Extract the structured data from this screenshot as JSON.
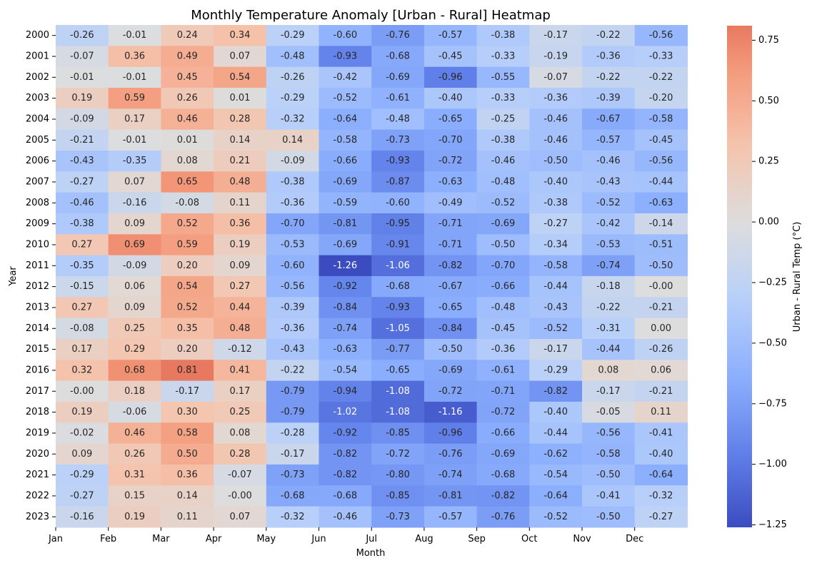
{
  "chart_data": {
    "type": "heatmap",
    "title": "Monthly Temperature Anomaly [Urban - Rural] Heatmap",
    "xlabel": "Month",
    "ylabel": "Year",
    "colorbar_label": "Urban - Rural Temp (°C)",
    "colormap": "coolwarm",
    "vmin": -1.26,
    "vmax": 0.81,
    "colorbar_ticks": [
      "0.75",
      "0.50",
      "0.25",
      "0.00",
      "−0.25",
      "−0.50",
      "−0.75",
      "−1.00",
      "−1.25"
    ],
    "colorbar_tick_values": [
      0.75,
      0.5,
      0.25,
      0.0,
      -0.25,
      -0.5,
      -0.75,
      -1.0,
      -1.25
    ],
    "x_tick_labels": [
      "Jan",
      "Feb",
      "Mar",
      "Apr",
      "May",
      "Jun",
      "Jul",
      "Aug",
      "Sep",
      "Oct",
      "Nov",
      "Dec"
    ],
    "y_tick_labels": [
      "2000",
      "2001",
      "2002",
      "2003",
      "2004",
      "2005",
      "2006",
      "2007",
      "2008",
      "2009",
      "2010",
      "2011",
      "2012",
      "2013",
      "2014",
      "2015",
      "2016",
      "2017",
      "2018",
      "2019",
      "2020",
      "2021",
      "2022",
      "2023"
    ],
    "cell_labels": [
      [
        "-0.26",
        "-0.01",
        "0.24",
        "0.34",
        "-0.29",
        "-0.60",
        "-0.76",
        "-0.57",
        "-0.38",
        "-0.17",
        "-0.22",
        "-0.56"
      ],
      [
        "-0.07",
        "0.36",
        "0.49",
        "0.07",
        "-0.48",
        "-0.93",
        "-0.68",
        "-0.45",
        "-0.33",
        "-0.19",
        "-0.36",
        "-0.33"
      ],
      [
        "-0.01",
        "-0.01",
        "0.45",
        "0.54",
        "-0.26",
        "-0.42",
        "-0.69",
        "-0.96",
        "-0.55",
        "-0.07",
        "-0.22",
        "-0.22"
      ],
      [
        "0.19",
        "0.59",
        "0.26",
        "0.01",
        "-0.29",
        "-0.52",
        "-0.61",
        "-0.40",
        "-0.33",
        "-0.36",
        "-0.39",
        "-0.20"
      ],
      [
        "-0.09",
        "0.17",
        "0.46",
        "0.28",
        "-0.32",
        "-0.64",
        "-0.48",
        "-0.65",
        "-0.25",
        "-0.46",
        "-0.67",
        "-0.58"
      ],
      [
        "-0.21",
        "-0.01",
        "0.01",
        "0.14",
        "0.14",
        "-0.58",
        "-0.73",
        "-0.70",
        "-0.38",
        "-0.46",
        "-0.57",
        "-0.45"
      ],
      [
        "-0.43",
        "-0.35",
        "0.08",
        "0.21",
        "-0.09",
        "-0.66",
        "-0.93",
        "-0.72",
        "-0.46",
        "-0.50",
        "-0.46",
        "-0.56"
      ],
      [
        "-0.27",
        "0.07",
        "0.65",
        "0.48",
        "-0.38",
        "-0.69",
        "-0.87",
        "-0.63",
        "-0.48",
        "-0.40",
        "-0.43",
        "-0.44"
      ],
      [
        "-0.46",
        "-0.16",
        "-0.08",
        "0.11",
        "-0.36",
        "-0.59",
        "-0.60",
        "-0.49",
        "-0.52",
        "-0.38",
        "-0.52",
        "-0.63"
      ],
      [
        "-0.38",
        "0.09",
        "0.52",
        "0.36",
        "-0.70",
        "-0.81",
        "-0.95",
        "-0.71",
        "-0.69",
        "-0.27",
        "-0.42",
        "-0.14"
      ],
      [
        "0.27",
        "0.69",
        "0.59",
        "0.19",
        "-0.53",
        "-0.69",
        "-0.91",
        "-0.71",
        "-0.50",
        "-0.34",
        "-0.53",
        "-0.51"
      ],
      [
        "-0.35",
        "-0.09",
        "0.20",
        "0.09",
        "-0.60",
        "-1.26",
        "-1.06",
        "-0.82",
        "-0.70",
        "-0.58",
        "-0.74",
        "-0.50"
      ],
      [
        "-0.15",
        "0.06",
        "0.54",
        "0.27",
        "-0.56",
        "-0.92",
        "-0.68",
        "-0.67",
        "-0.66",
        "-0.44",
        "-0.18",
        "-0.00"
      ],
      [
        "0.27",
        "0.09",
        "0.52",
        "0.44",
        "-0.39",
        "-0.84",
        "-0.93",
        "-0.65",
        "-0.48",
        "-0.43",
        "-0.22",
        "-0.21"
      ],
      [
        "-0.08",
        "0.25",
        "0.35",
        "0.48",
        "-0.36",
        "-0.74",
        "-1.05",
        "-0.84",
        "-0.45",
        "-0.52",
        "-0.31",
        "0.00"
      ],
      [
        "0.17",
        "0.29",
        "0.20",
        "-0.12",
        "-0.43",
        "-0.63",
        "-0.77",
        "-0.50",
        "-0.36",
        "-0.17",
        "-0.44",
        "-0.26"
      ],
      [
        "0.32",
        "0.68",
        "0.81",
        "0.41",
        "-0.22",
        "-0.54",
        "-0.65",
        "-0.69",
        "-0.61",
        "-0.29",
        "0.08",
        "0.06"
      ],
      [
        "-0.00",
        "0.18",
        "-0.17",
        "0.17",
        "-0.79",
        "-0.94",
        "-1.08",
        "-0.72",
        "-0.71",
        "-0.82",
        "-0.17",
        "-0.21"
      ],
      [
        "0.19",
        "-0.06",
        "0.30",
        "0.25",
        "-0.79",
        "-1.02",
        "-1.08",
        "-1.16",
        "-0.72",
        "-0.40",
        "-0.05",
        "0.11"
      ],
      [
        "-0.02",
        "0.46",
        "0.58",
        "0.08",
        "-0.28",
        "-0.92",
        "-0.85",
        "-0.96",
        "-0.66",
        "-0.44",
        "-0.56",
        "-0.41"
      ],
      [
        "0.09",
        "0.26",
        "0.50",
        "0.28",
        "-0.17",
        "-0.82",
        "-0.72",
        "-0.76",
        "-0.69",
        "-0.62",
        "-0.58",
        "-0.40"
      ],
      [
        "-0.29",
        "0.31",
        "0.36",
        "-0.07",
        "-0.73",
        "-0.82",
        "-0.80",
        "-0.74",
        "-0.68",
        "-0.54",
        "-0.50",
        "-0.64"
      ],
      [
        "-0.27",
        "0.15",
        "0.14",
        "-0.00",
        "-0.68",
        "-0.68",
        "-0.85",
        "-0.81",
        "-0.82",
        "-0.64",
        "-0.41",
        "-0.32"
      ],
      [
        "-0.16",
        "0.19",
        "0.11",
        "0.07",
        "-0.32",
        "-0.46",
        "-0.73",
        "-0.57",
        "-0.76",
        "-0.52",
        "-0.50",
        "-0.27"
      ]
    ],
    "grid": false,
    "legend": "colorbar-right"
  }
}
